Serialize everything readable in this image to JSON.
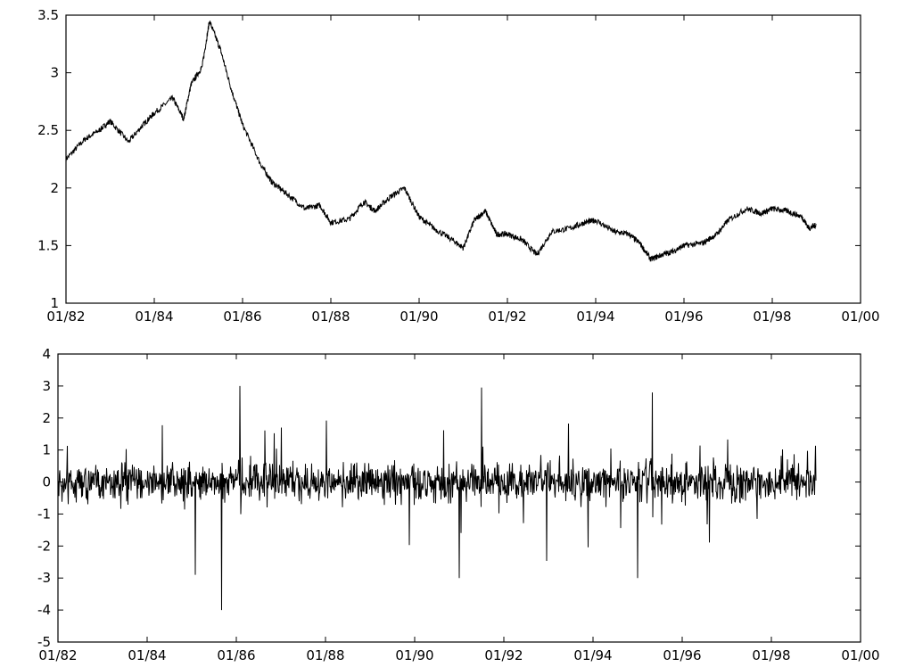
{
  "chart_data": [
    {
      "type": "line",
      "title": "",
      "xlabel": "",
      "ylabel": "",
      "x_tick_labels": [
        "01/82",
        "01/84",
        "01/86",
        "01/88",
        "01/90",
        "01/92",
        "01/94",
        "01/96",
        "01/98",
        "01/00"
      ],
      "y_tick_labels": [
        "1",
        "1.5",
        "2",
        "2.5",
        "3",
        "3.5"
      ],
      "xlim": [
        "1982-01",
        "2000-01"
      ],
      "ylim": [
        1,
        3.5
      ],
      "grid": false,
      "series": [
        {
          "x": [
            "1982-01",
            "1982-06",
            "1982-10",
            "1983-01",
            "1983-06",
            "1983-10",
            "1984-01",
            "1984-06",
            "1984-09",
            "1984-11",
            "1985-02",
            "1985-04",
            "1985-07",
            "1985-10",
            "1986-01",
            "1986-06",
            "1986-09",
            "1987-01",
            "1987-06",
            "1987-10",
            "1988-01",
            "1988-06",
            "1988-10",
            "1989-01",
            "1989-05",
            "1989-09",
            "1990-01",
            "1990-05",
            "1990-10",
            "1991-01",
            "1991-04",
            "1991-07",
            "1991-10",
            "1992-01",
            "1992-05",
            "1992-09",
            "1993-01",
            "1993-06",
            "1993-10",
            "1994-01",
            "1994-06",
            "1994-10",
            "1995-01",
            "1995-04",
            "1995-07",
            "1995-10",
            "1996-01",
            "1996-06",
            "1996-10",
            "1997-01",
            "1997-06",
            "1997-10",
            "1998-01",
            "1998-05",
            "1998-09",
            "1998-11",
            "1999-01"
          ],
          "values": [
            2.25,
            2.42,
            2.5,
            2.58,
            2.4,
            2.55,
            2.65,
            2.78,
            2.6,
            2.9,
            3.05,
            3.45,
            3.2,
            2.85,
            2.55,
            2.2,
            2.05,
            1.95,
            1.82,
            1.85,
            1.7,
            1.73,
            1.88,
            1.8,
            1.92,
            2.0,
            1.75,
            1.65,
            1.55,
            1.48,
            1.72,
            1.8,
            1.6,
            1.6,
            1.55,
            1.42,
            1.62,
            1.65,
            1.7,
            1.72,
            1.62,
            1.6,
            1.52,
            1.38,
            1.42,
            1.45,
            1.5,
            1.52,
            1.6,
            1.72,
            1.82,
            1.78,
            1.82,
            1.8,
            1.75,
            1.65,
            1.68
          ]
        }
      ]
    },
    {
      "type": "line",
      "title": "",
      "xlabel": "",
      "ylabel": "",
      "x_tick_labels": [
        "01/82",
        "01/84",
        "01/86",
        "01/88",
        "01/90",
        "01/92",
        "01/94",
        "01/96",
        "01/98",
        "01/00"
      ],
      "y_tick_labels": [
        "-5",
        "-4",
        "-3",
        "-2",
        "-1",
        "0",
        "1",
        "2",
        "3",
        "4"
      ],
      "xlim": [
        "1982-01",
        "2000-01"
      ],
      "ylim": [
        -5,
        4
      ],
      "grid": false,
      "series": [
        {
          "description_free": true,
          "x_start": "1982-01",
          "x_end": "1999-01",
          "notable_extremes": [
            {
              "x": "1985-09",
              "value": -4.0
            },
            {
              "x": "1986-02",
              "value": 3.0
            },
            {
              "x": "1991-01",
              "value": 3.2
            },
            {
              "x": "1991-07",
              "value": 2.95
            },
            {
              "x": "1991-01",
              "value": -3.0
            },
            {
              "x": "1995-01",
              "value": -3.0
            },
            {
              "x": "1995-05",
              "value": 2.8
            },
            {
              "x": "1985-02",
              "value": -2.9
            }
          ]
        }
      ]
    }
  ]
}
